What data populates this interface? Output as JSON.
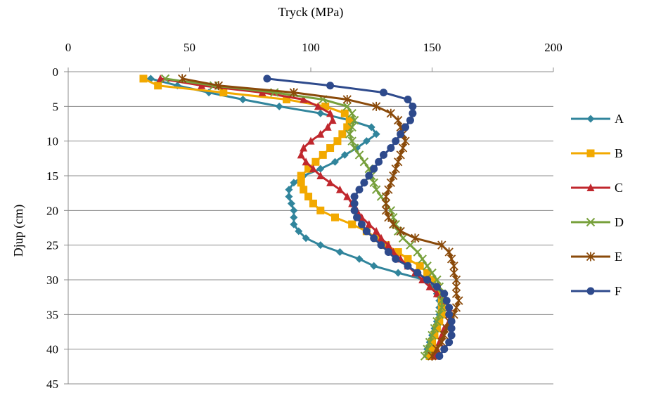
{
  "chart_data": {
    "type": "line",
    "title": "",
    "xlabel": "Tryck (MPa)",
    "ylabel": "Djup (cm)",
    "xlim": [
      0,
      200
    ],
    "ylim": [
      45,
      0
    ],
    "x_ticks": [
      0,
      50,
      100,
      150,
      200
    ],
    "y_ticks": [
      0,
      5,
      10,
      15,
      20,
      25,
      30,
      35,
      40,
      45
    ],
    "x_axis_position": "top",
    "y_inverted": true,
    "grid": "horizontal",
    "legend_position": "right",
    "series": [
      {
        "name": "A",
        "color": "#31859c",
        "marker": "diamond",
        "x": [
          34,
          45,
          58,
          72,
          87,
          104,
          116,
          125,
          127,
          123,
          119,
          114,
          110,
          104,
          97,
          93,
          91,
          91,
          92,
          93,
          93,
          93,
          95,
          98,
          104,
          112,
          120,
          126,
          136,
          147,
          150,
          152,
          153,
          153,
          153,
          152,
          151,
          150,
          149,
          148,
          148
        ],
        "y": [
          1,
          2,
          3,
          4,
          5,
          6,
          7,
          8,
          9,
          10,
          11,
          12,
          13,
          14,
          15,
          16,
          17,
          18,
          19,
          20,
          21,
          22,
          23,
          24,
          25,
          26,
          27,
          28,
          29,
          30,
          31,
          32,
          33,
          34,
          35,
          36,
          37,
          38,
          39,
          40,
          41
        ]
      },
      {
        "name": "B",
        "color": "#f2a900",
        "marker": "square",
        "x": [
          31,
          37,
          64,
          90,
          106,
          114,
          116,
          115,
          113,
          111,
          108,
          105,
          102,
          99,
          96,
          96,
          97,
          99,
          101,
          104,
          110,
          117,
          123,
          127,
          131,
          136,
          140,
          145,
          148,
          150,
          152,
          153,
          154,
          154,
          154,
          153,
          152,
          151,
          150,
          150,
          149
        ],
        "y": [
          1,
          2,
          3,
          4,
          5,
          6,
          7,
          8,
          9,
          10,
          11,
          12,
          13,
          14,
          15,
          16,
          17,
          18,
          19,
          20,
          21,
          22,
          23,
          24,
          25,
          26,
          27,
          28,
          29,
          30,
          31,
          32,
          33,
          34,
          35,
          36,
          37,
          38,
          39,
          40,
          41
        ]
      },
      {
        "name": "C",
        "color": "#c0272d",
        "marker": "triangle",
        "x": [
          38,
          55,
          80,
          97,
          103,
          108,
          109,
          107,
          104,
          100,
          97,
          96,
          98,
          101,
          104,
          108,
          112,
          115,
          117,
          119,
          121,
          124,
          127,
          129,
          132,
          134,
          137,
          140,
          143,
          146,
          149,
          152,
          155,
          157,
          157,
          157,
          155,
          154,
          153,
          152,
          151
        ],
        "y": [
          1,
          2,
          3,
          4,
          5,
          6,
          7,
          8,
          9,
          10,
          11,
          12,
          13,
          14,
          15,
          16,
          17,
          18,
          19,
          20,
          21,
          22,
          23,
          24,
          25,
          26,
          27,
          28,
          29,
          30,
          31,
          32,
          33,
          34,
          35,
          36,
          37,
          38,
          39,
          40,
          41
        ]
      },
      {
        "name": "D",
        "color": "#77a03b",
        "marker": "x",
        "x": [
          40,
          60,
          85,
          105,
          115,
          117,
          118,
          117,
          116,
          117,
          118,
          120,
          122,
          124,
          125,
          126,
          127,
          129,
          131,
          133,
          134,
          135,
          136,
          138,
          141,
          144,
          146,
          148,
          150,
          152,
          153,
          154,
          154,
          154,
          153,
          152,
          151,
          150,
          149,
          148,
          147
        ],
        "y": [
          1,
          2,
          3,
          4,
          5,
          6,
          7,
          8,
          9,
          10,
          11,
          12,
          13,
          14,
          15,
          16,
          17,
          18,
          19,
          20,
          21,
          22,
          23,
          24,
          25,
          26,
          27,
          28,
          29,
          30,
          31,
          32,
          33,
          34,
          35,
          36,
          37,
          38,
          39,
          40,
          41
        ]
      },
      {
        "name": "E",
        "color": "#8a4a0a",
        "marker": "asterisk",
        "x": [
          47,
          62,
          93,
          115,
          127,
          133,
          136,
          137,
          138,
          139,
          138,
          137,
          136,
          135,
          134,
          133,
          132,
          131,
          131,
          131,
          132,
          134,
          137,
          143,
          154,
          157,
          158,
          159,
          159,
          160,
          160,
          160,
          161,
          160,
          159,
          157,
          156,
          155,
          154,
          152,
          150
        ],
        "y": [
          1,
          2,
          3,
          4,
          5,
          6,
          7,
          8,
          9,
          10,
          11,
          12,
          13,
          14,
          15,
          16,
          17,
          18,
          19,
          20,
          21,
          22,
          23,
          24,
          25,
          26,
          27,
          28,
          29,
          30,
          31,
          32,
          33,
          34,
          35,
          36,
          37,
          38,
          39,
          40,
          41
        ]
      },
      {
        "name": "F",
        "color": "#2e4a8c",
        "marker": "circle",
        "x": [
          82,
          108,
          130,
          140,
          142,
          142,
          141,
          139,
          137,
          135,
          133,
          130,
          128,
          126,
          124,
          122,
          120,
          118,
          118,
          118,
          119,
          121,
          123,
          126,
          129,
          132,
          135,
          140,
          144,
          148,
          152,
          155,
          156,
          157,
          157,
          158,
          158,
          158,
          157,
          155,
          153
        ],
        "y": [
          1,
          2,
          3,
          4,
          5,
          6,
          7,
          8,
          9,
          10,
          11,
          12,
          13,
          14,
          15,
          16,
          17,
          18,
          19,
          20,
          21,
          22,
          23,
          24,
          25,
          26,
          27,
          28,
          29,
          30,
          31,
          32,
          33,
          34,
          35,
          36,
          37,
          38,
          39,
          40,
          41
        ]
      }
    ]
  }
}
